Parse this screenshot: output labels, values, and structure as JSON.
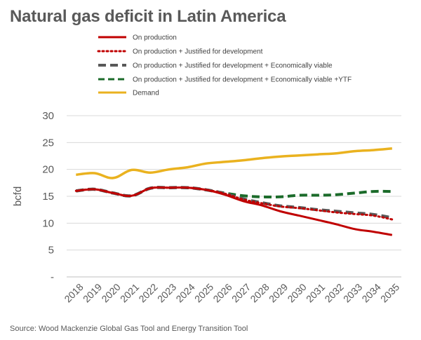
{
  "title": "Natural gas deficit in Latin America",
  "source": "Source: Wood Mackenzie Global Gas Tool and Energy Transition Tool",
  "chart_data": {
    "type": "line",
    "ylabel": "bcfd",
    "xlabel": "",
    "ylim": [
      0,
      30
    ],
    "y_ticks": [
      "-",
      "5",
      "10",
      "15",
      "20",
      "25",
      "30"
    ],
    "grid": true,
    "legend_position": "top",
    "categories": [
      "2018",
      "2019",
      "2020",
      "2021",
      "2022",
      "2023",
      "2024",
      "2025",
      "2026",
      "2027",
      "2028",
      "2029",
      "2030",
      "2031",
      "2032",
      "2033",
      "2034",
      "2035"
    ],
    "series": [
      {
        "name": "On production",
        "color": "#c00000",
        "dash": "solid",
        "values": [
          16.0,
          16.3,
          15.6,
          15.1,
          16.5,
          16.6,
          16.6,
          16.2,
          15.3,
          14.1,
          13.3,
          12.2,
          11.4,
          10.6,
          9.8,
          8.9,
          8.4,
          7.8
        ]
      },
      {
        "name": "On production + Justified for development",
        "color": "#c00000",
        "dash": "dotted",
        "values": [
          16.0,
          16.3,
          15.6,
          15.1,
          16.5,
          16.6,
          16.6,
          16.2,
          15.5,
          14.4,
          13.7,
          13.1,
          12.8,
          12.4,
          12.0,
          11.7,
          11.4,
          10.7
        ]
      },
      {
        "name": "On production + Justified for development + Economically viable",
        "color": "#595959",
        "dash": "dashed",
        "values": [
          16.0,
          16.3,
          15.6,
          15.1,
          16.5,
          16.6,
          16.6,
          16.2,
          15.5,
          14.5,
          13.8,
          13.2,
          12.9,
          12.5,
          12.2,
          11.9,
          11.6,
          11.0
        ]
      },
      {
        "name": "On production + Justified for development + Economically viable +YTF",
        "color": "#1b6b2a",
        "dash": "dashed",
        "values": [
          16.0,
          16.3,
          15.6,
          15.1,
          16.5,
          16.6,
          16.6,
          16.2,
          15.6,
          15.1,
          14.9,
          14.9,
          15.2,
          15.2,
          15.3,
          15.6,
          15.9,
          15.9
        ]
      },
      {
        "name": "Demand",
        "color": "#eab21f",
        "dash": "solid",
        "values": [
          19.0,
          19.3,
          18.4,
          19.9,
          19.4,
          20.0,
          20.4,
          21.1,
          21.4,
          21.7,
          22.1,
          22.4,
          22.6,
          22.8,
          23.0,
          23.4,
          23.6,
          23.9
        ]
      }
    ]
  }
}
